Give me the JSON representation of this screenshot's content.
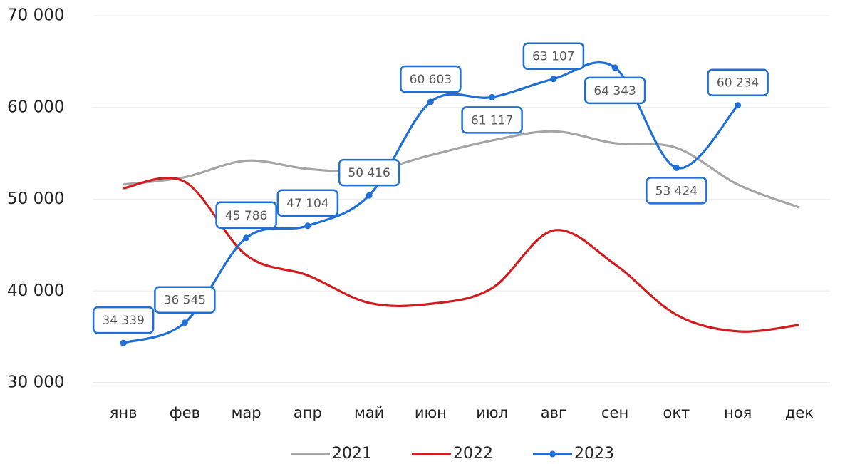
{
  "chart_data": {
    "type": "line",
    "categories": [
      "янв",
      "фев",
      "мар",
      "апр",
      "май",
      "июн",
      "июл",
      "авг",
      "сен",
      "окт",
      "ноя",
      "дек"
    ],
    "series": [
      {
        "name": "2021",
        "color": "#a5a5a5",
        "values": [
          51600,
          52400,
          54200,
          53300,
          53100,
          54800,
          56400,
          57400,
          56100,
          55600,
          51600,
          49100
        ]
      },
      {
        "name": "2022",
        "color": "#d01c1f",
        "values": [
          51200,
          51900,
          43900,
          41700,
          38700,
          38600,
          40300,
          46600,
          42900,
          37400,
          35600,
          36300
        ]
      },
      {
        "name": "2023",
        "color": "#1f6fd8",
        "marker": true,
        "values": [
          34339,
          36545,
          45786,
          47104,
          50416,
          60603,
          61117,
          63107,
          64343,
          53424,
          60234,
          null
        ],
        "value_labels": [
          "34 339",
          "36 545",
          "45 786",
          "47 104",
          "50 416",
          "60 603",
          "61 117",
          "63 107",
          "64 343",
          "53 424",
          "60 234",
          null
        ]
      }
    ],
    "ylim": [
      30000,
      70000
    ],
    "yticks": [
      {
        "value": 30000,
        "label": "30 000"
      },
      {
        "value": 40000,
        "label": "40 000"
      },
      {
        "value": 50000,
        "label": "50 000"
      },
      {
        "value": 60000,
        "label": "60 000"
      },
      {
        "value": 70000,
        "label": "70 000"
      }
    ],
    "grid": true,
    "legend": "bottom",
    "smooth": true
  }
}
